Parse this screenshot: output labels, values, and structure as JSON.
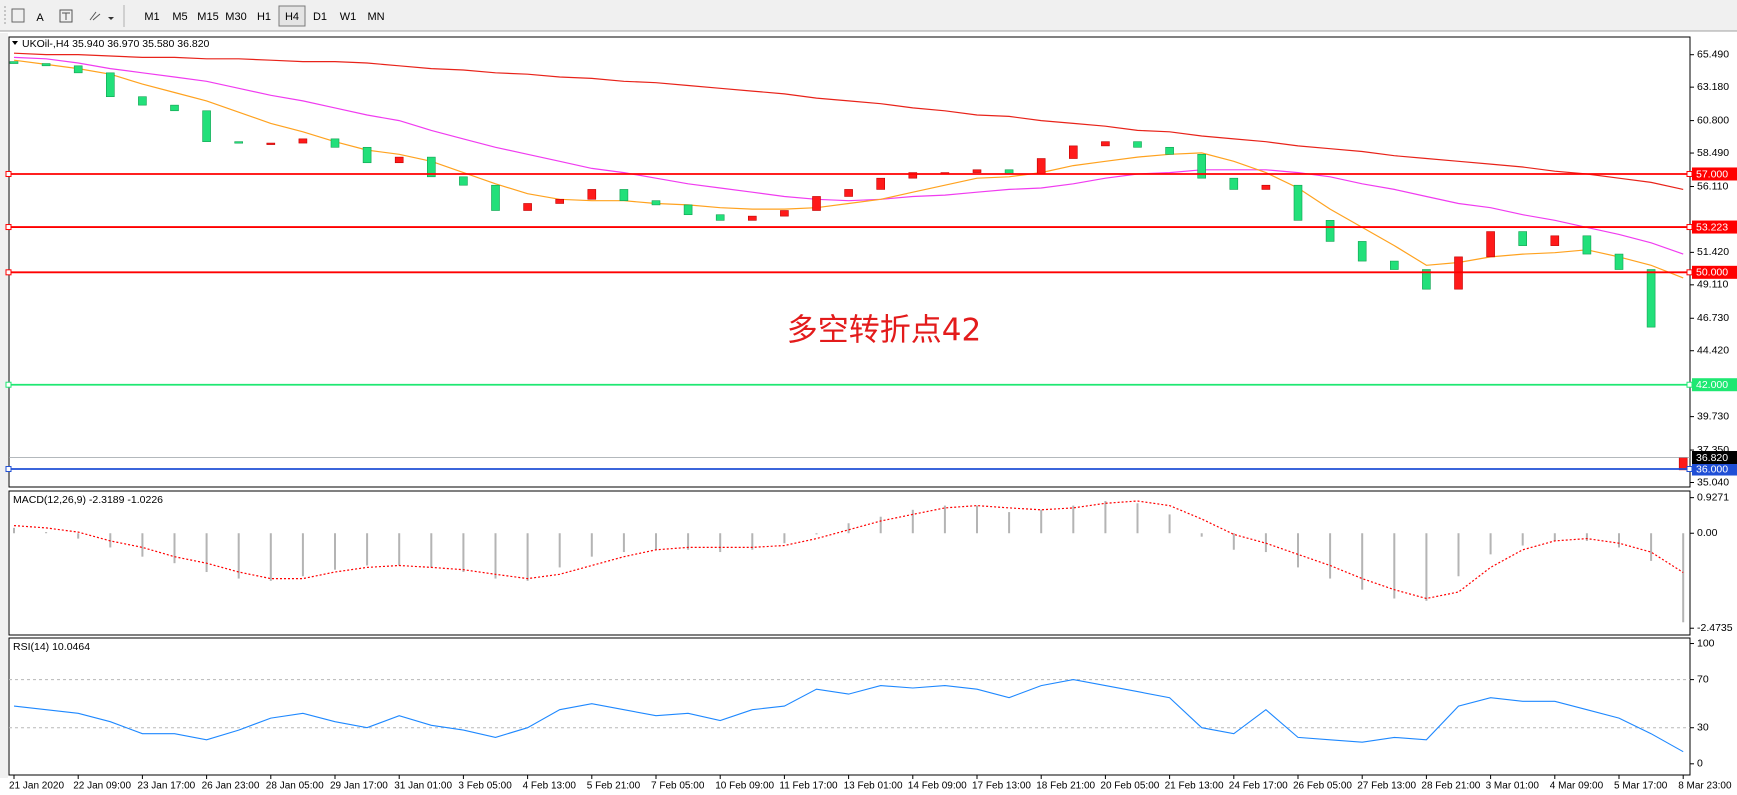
{
  "toolbar": {
    "text_tool": "A",
    "timeframes": [
      "M1",
      "M5",
      "M15",
      "M30",
      "H1",
      "H4",
      "D1",
      "W1",
      "MN"
    ],
    "active_timeframe": "H4"
  },
  "chart_data": [
    {
      "type": "candlestick",
      "title": "UKOil-,H4  35.940 36.970 35.580 36.820",
      "annotation": "多空转折点42",
      "categories": [
        "21 Jan 2020",
        null,
        "22 Jan 09:00",
        null,
        "23 Jan 17:00",
        null,
        "26 Jan 23:00",
        null,
        "28 Jan 05:00",
        null,
        "29 Jan 17:00",
        null,
        "31 Jan 01:00",
        null,
        "3 Feb 05:00",
        null,
        "4 Feb 13:00",
        null,
        "5 Feb 21:00",
        null,
        "7 Feb 05:00",
        null,
        "10 Feb 09:00",
        null,
        "11 Feb 17:00",
        null,
        "13 Feb 01:00",
        null,
        "14 Feb 09:00",
        null,
        "17 Feb 13:00",
        null,
        "18 Feb 21:00",
        null,
        "20 Feb 05:00",
        null,
        "21 Feb 13:00",
        null,
        "24 Feb 17:00",
        null,
        "26 Feb 05:00",
        null,
        "27 Feb 13:00",
        null,
        "28 Feb 21:00",
        null,
        "3 Mar 01:00",
        null,
        "4 Mar 09:00",
        null,
        "5 Mar 17:00",
        null,
        "8 Mar 23:00"
      ],
      "open": [
        65.0,
        64.86,
        64.7,
        64.2,
        62.5,
        61.9,
        61.5,
        59.3,
        59.2,
        59.2,
        59.5,
        58.9,
        57.8,
        58.2,
        56.8,
        56.2,
        54.4,
        54.9,
        55.2,
        55.9,
        55.1,
        54.8,
        54.1,
        53.7,
        54,
        54.4,
        55.4,
        55.9,
        56.7,
        57.1,
        57.1,
        57.3,
        57.0,
        58.1,
        59.0,
        59.3,
        58.9,
        58.4,
        56.7,
        55.9,
        56.2,
        53.7,
        52.2,
        50.8,
        50.2,
        48.8,
        51.1,
        52.9,
        51.9,
        52.6,
        51.3,
        50.2,
        35.94
      ],
      "close": [
        64.86,
        64.7,
        64.2,
        62.5,
        61.9,
        61.5,
        59.3,
        59.2,
        59.2,
        59.5,
        58.9,
        57.8,
        58.2,
        56.8,
        56.2,
        54.4,
        54.9,
        55.2,
        55.9,
        55.1,
        54.8,
        54.1,
        53.7,
        54,
        54.4,
        55.4,
        55.9,
        56.7,
        57.1,
        57.1,
        57.3,
        57.0,
        58.1,
        59.0,
        59.3,
        58.9,
        58.4,
        56.7,
        55.9,
        56.2,
        53.7,
        52.2,
        50.8,
        50.2,
        48.8,
        51.1,
        52.9,
        51.9,
        52.6,
        51.3,
        50.2,
        46.1,
        36.82
      ],
      "up_color": "#ff1a1a",
      "down_color": "#22e07a",
      "lines": [
        {
          "color": "#ffa21f",
          "values": [
            65.1,
            64.8,
            64.5,
            64.1,
            63.4,
            62.8,
            62.2,
            61.4,
            60.6,
            60.0,
            59.3,
            58.7,
            58.4,
            57.9,
            57.1,
            56.3,
            55.6,
            55.2,
            55.1,
            55.1,
            54.9,
            54.8,
            54.6,
            54.5,
            54.5,
            54.6,
            54.9,
            55.2,
            55.7,
            56.2,
            56.7,
            56.8,
            57.1,
            57.6,
            57.9,
            58.2,
            58.4,
            58.5,
            57.9,
            57.1,
            56.0,
            54.5,
            53.2,
            51.9,
            50.5,
            50.7,
            51.1,
            51.3,
            51.4,
            51.6,
            51.1,
            50.5,
            49.6
          ]
        },
        {
          "color": "#f03cf0",
          "values": [
            65.3,
            65.2,
            64.9,
            64.5,
            64.2,
            63.9,
            63.6,
            63.1,
            62.6,
            62.2,
            61.7,
            61.2,
            60.8,
            60.1,
            59.5,
            58.9,
            58.4,
            57.9,
            57.4,
            57.1,
            56.7,
            56.3,
            56.0,
            55.7,
            55.4,
            55.2,
            55.1,
            55.2,
            55.4,
            55.5,
            55.7,
            55.9,
            56.0,
            56.3,
            56.7,
            57.0,
            57.1,
            57.3,
            57.3,
            57.3,
            57.1,
            56.8,
            56.3,
            55.9,
            55.4,
            54.9,
            54.6,
            54.1,
            53.7,
            53.2,
            52.7,
            52.1,
            51.3
          ]
        },
        {
          "color": "#e8231a",
          "values": [
            65.6,
            65.5,
            65.5,
            65.4,
            65.3,
            65.3,
            65.2,
            65.2,
            65.1,
            65.0,
            65.0,
            64.9,
            64.7,
            64.5,
            64.4,
            64.2,
            64.1,
            63.9,
            63.8,
            63.6,
            63.5,
            63.3,
            63.1,
            62.9,
            62.7,
            62.4,
            62.2,
            62.0,
            61.7,
            61.5,
            61.2,
            61.1,
            60.8,
            60.6,
            60.4,
            60.1,
            60.0,
            59.7,
            59.5,
            59.3,
            59.0,
            58.8,
            58.6,
            58.3,
            58.1,
            57.9,
            57.7,
            57.5,
            57.2,
            57.0,
            56.7,
            56.4,
            55.9
          ]
        }
      ],
      "levels": [
        {
          "value": 57,
          "label": "57.000",
          "color": "#ff0000"
        },
        {
          "value": 53.223,
          "label": "53.223",
          "color": "#ff0000"
        },
        {
          "value": 50,
          "label": "50.000",
          "color": "#ff0000"
        },
        {
          "value": 42,
          "label": "42.000",
          "color": "#1ee872"
        },
        {
          "value": 36,
          "label": "36.000",
          "color": "#1f4fd6"
        }
      ],
      "last_price": {
        "value": 36.82,
        "label": "36.820"
      },
      "ylim": [
        34.72,
        66.75
      ],
      "yticks": [
        {
          "value": 65.49,
          "label": "65.490"
        },
        {
          "value": 63.18,
          "label": "63.180"
        },
        {
          "value": 60.8,
          "label": "60.800"
        },
        {
          "value": 58.49,
          "label": "58.490"
        },
        {
          "value": 56.11,
          "label": "56.110"
        },
        {
          "value": 51.42,
          "label": "51.420"
        },
        {
          "value": 49.11,
          "label": "49.110"
        },
        {
          "value": 46.73,
          "label": "46.730"
        },
        {
          "value": 44.42,
          "label": "44.420"
        },
        {
          "value": 39.73,
          "label": "39.730"
        },
        {
          "value": 37.35,
          "label": "37.350"
        },
        {
          "value": 35.04,
          "label": "35.040"
        }
      ]
    },
    {
      "type": "macd",
      "title": "MACD(12,26,9) -2.3189 -1.0226",
      "histogram_color": "#b4b4b4",
      "signal_color": "#ff0000",
      "histogram": [
        0.14,
        0.03,
        -0.14,
        -0.37,
        -0.61,
        -0.78,
        -1.01,
        -1.18,
        -1.24,
        -1.12,
        -0.95,
        -0.84,
        -0.84,
        -0.89,
        -1.01,
        -1.18,
        -1.24,
        -0.89,
        -0.61,
        -0.49,
        -0.43,
        -0.43,
        -0.49,
        -0.43,
        -0.26,
        -0.03,
        0.26,
        0.43,
        0.61,
        0.72,
        0.72,
        0.55,
        0.61,
        0.72,
        0.84,
        0.78,
        0.49,
        -0.09,
        -0.43,
        -0.49,
        -0.89,
        -1.18,
        -1.47,
        -1.7,
        -1.76,
        -1.12,
        -0.55,
        -0.32,
        -0.2,
        -0.2,
        -0.37,
        -0.72,
        -2.3189
      ],
      "signal": [
        0.2,
        0.14,
        0.03,
        -0.2,
        -0.37,
        -0.61,
        -0.78,
        -1.01,
        -1.18,
        -1.18,
        -1.01,
        -0.89,
        -0.84,
        -0.89,
        -0.95,
        -1.07,
        -1.18,
        -1.07,
        -0.84,
        -0.61,
        -0.43,
        -0.37,
        -0.37,
        -0.37,
        -0.32,
        -0.14,
        0.09,
        0.32,
        0.49,
        0.66,
        0.72,
        0.66,
        0.61,
        0.66,
        0.78,
        0.84,
        0.72,
        0.37,
        -0.03,
        -0.26,
        -0.55,
        -0.84,
        -1.18,
        -1.47,
        -1.7,
        -1.53,
        -0.89,
        -0.43,
        -0.2,
        -0.14,
        -0.26,
        -0.49,
        -1.0226
      ],
      "ylim": [
        -2.65,
        1.1
      ],
      "yticks": [
        0.9271,
        {
          "value": 0,
          "label": "0.00"
        },
        -2.4735
      ]
    },
    {
      "type": "rsi",
      "title": "RSI(14) 10.0464",
      "color": "#1e88ff",
      "values": [
        48,
        45,
        42,
        35,
        25,
        25,
        20,
        28,
        38,
        42,
        35,
        30,
        40,
        32,
        28,
        22,
        30,
        45,
        50,
        45,
        40,
        42,
        36,
        45,
        48,
        62,
        58,
        65,
        63,
        65,
        62,
        55,
        65,
        70,
        65,
        60,
        55,
        30,
        25,
        45,
        22,
        20,
        18,
        22,
        20,
        48,
        55,
        52,
        52,
        45,
        38,
        25,
        10.0464
      ],
      "levels": [
        70,
        30
      ],
      "ylim": [
        -9.3,
        104.6
      ],
      "yticks": [
        100,
        70,
        30,
        0
      ]
    }
  ]
}
